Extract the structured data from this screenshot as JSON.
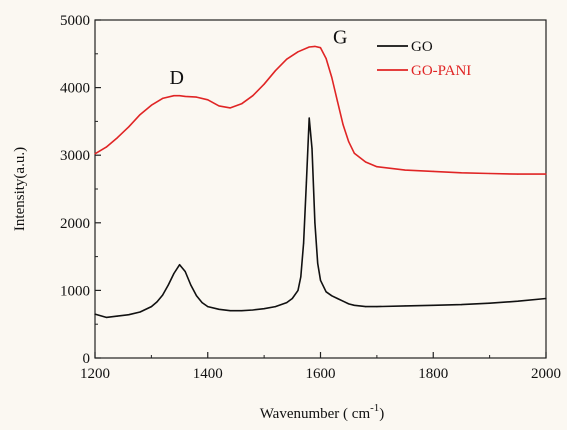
{
  "chart_data": {
    "type": "line",
    "xlabel": "Wavenumber",
    "xunit": "( cm",
    "xunit_sup": "-1",
    "xunit_close": ")",
    "ylabel": "Intensity(a.u.)",
    "xlim": [
      1200,
      2000
    ],
    "ylim": [
      0,
      5000
    ],
    "x_ticks": [
      1200,
      1400,
      1600,
      1800,
      2000
    ],
    "y_ticks": [
      0,
      1000,
      2000,
      3000,
      4000,
      5000
    ],
    "legend_position": "top-right",
    "annotations": [
      {
        "text": "D",
        "x": 1345,
        "y": 4050
      },
      {
        "text": "G",
        "x": 1635,
        "y": 4650
      }
    ],
    "series": [
      {
        "name": "GO",
        "color": "#111111",
        "x": [
          1200,
          1220,
          1240,
          1260,
          1280,
          1300,
          1310,
          1320,
          1330,
          1340,
          1350,
          1360,
          1370,
          1380,
          1390,
          1400,
          1420,
          1440,
          1460,
          1480,
          1500,
          1520,
          1540,
          1550,
          1560,
          1565,
          1570,
          1575,
          1580,
          1585,
          1590,
          1595,
          1600,
          1610,
          1620,
          1630,
          1640,
          1650,
          1660,
          1680,
          1700,
          1750,
          1800,
          1850,
          1900,
          1950,
          2000
        ],
        "y": [
          650,
          600,
          620,
          640,
          680,
          760,
          830,
          930,
          1080,
          1250,
          1380,
          1280,
          1080,
          920,
          820,
          760,
          720,
          700,
          700,
          710,
          730,
          760,
          820,
          880,
          1000,
          1200,
          1700,
          2600,
          3550,
          3100,
          2000,
          1400,
          1150,
          980,
          920,
          880,
          840,
          800,
          780,
          760,
          760,
          770,
          780,
          790,
          810,
          840,
          880
        ]
      },
      {
        "name": "GO-PANI",
        "color": "#e02525",
        "x": [
          1200,
          1220,
          1240,
          1260,
          1280,
          1300,
          1320,
          1340,
          1350,
          1360,
          1380,
          1400,
          1420,
          1440,
          1460,
          1480,
          1500,
          1520,
          1540,
          1560,
          1580,
          1590,
          1600,
          1610,
          1620,
          1630,
          1640,
          1650,
          1660,
          1680,
          1700,
          1750,
          1800,
          1850,
          1900,
          1950,
          2000
        ],
        "y": [
          3020,
          3120,
          3260,
          3420,
          3600,
          3740,
          3840,
          3880,
          3880,
          3870,
          3860,
          3820,
          3730,
          3700,
          3760,
          3880,
          4050,
          4250,
          4420,
          4530,
          4600,
          4610,
          4590,
          4430,
          4150,
          3800,
          3450,
          3200,
          3030,
          2900,
          2830,
          2780,
          2760,
          2740,
          2730,
          2720,
          2720
        ]
      }
    ]
  }
}
